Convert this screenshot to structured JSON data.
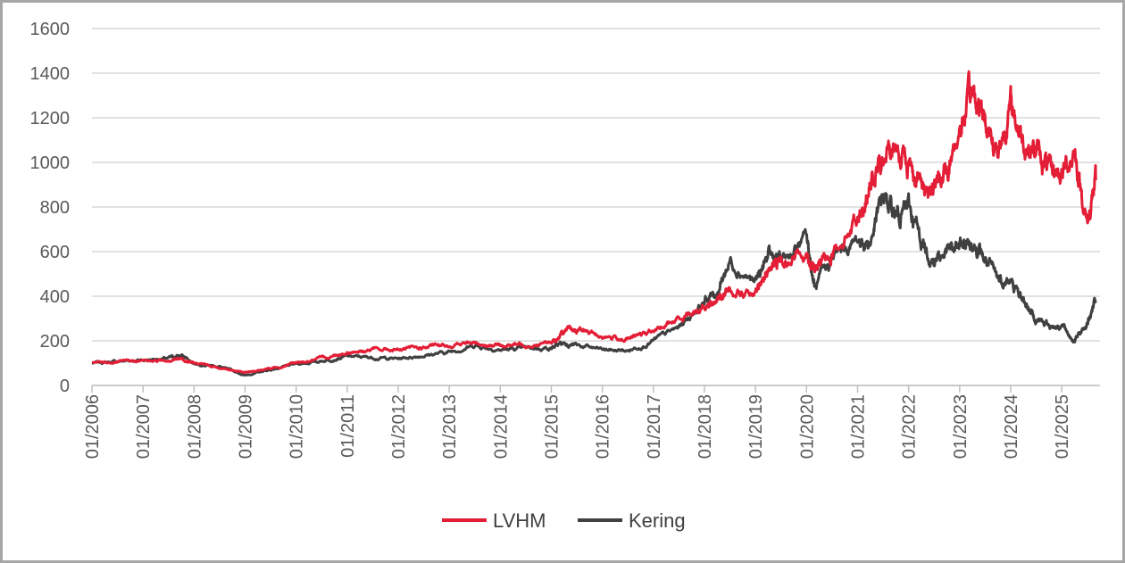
{
  "chart_data": {
    "type": "line",
    "title": "",
    "xlabel": "",
    "ylabel": "",
    "ylim": [
      0,
      1600
    ],
    "yticks": [
      0,
      200,
      400,
      600,
      800,
      1000,
      1200,
      1400,
      1600
    ],
    "x_tick_labels": [
      "01/2006",
      "01/2007",
      "01/2008",
      "01/2009",
      "01/2010",
      "01/2011",
      "01/2012",
      "01/2013",
      "01/2014",
      "01/2015",
      "01/2016",
      "01/2017",
      "01/2018",
      "01/2019",
      "01/2020",
      "01/2021",
      "01/2022",
      "01/2023",
      "01/2024",
      "01/2025"
    ],
    "grid": "horizontal",
    "legend": "bottom-center",
    "x": [
      "2006-01",
      "2006-07",
      "2007-01",
      "2007-07",
      "2007-10",
      "2008-01",
      "2008-07",
      "2009-01",
      "2009-07",
      "2010-01",
      "2010-07",
      "2011-01",
      "2011-07",
      "2012-01",
      "2012-07",
      "2013-01",
      "2013-07",
      "2014-01",
      "2014-07",
      "2015-01",
      "2015-04",
      "2015-07",
      "2016-01",
      "2016-07",
      "2017-01",
      "2017-07",
      "2018-01",
      "2018-04",
      "2018-07",
      "2019-01",
      "2019-04",
      "2019-07",
      "2020-01",
      "2020-03",
      "2020-07",
      "2021-01",
      "2021-04",
      "2021-07",
      "2021-10",
      "2022-01",
      "2022-04",
      "2022-07",
      "2022-10",
      "2023-01",
      "2023-04",
      "2023-07",
      "2023-10",
      "2024-01",
      "2024-04",
      "2024-07",
      "2024-10",
      "2025-01",
      "2025-04",
      "2025-07",
      "2025-09"
    ],
    "series": [
      {
        "name": "LVHM",
        "color": "#e31e36",
        "values": [
          100,
          105,
          110,
          115,
          120,
          100,
          80,
          58,
          75,
          100,
          120,
          150,
          160,
          160,
          170,
          180,
          190,
          180,
          185,
          190,
          240,
          250,
          220,
          210,
          240,
          300,
          360,
          380,
          440,
          400,
          520,
          560,
          600,
          520,
          600,
          760,
          900,
          1000,
          1080,
          1000,
          900,
          880,
          950,
          1150,
          1300,
          1200,
          1050,
          1250,
          1100,
          1050,
          960,
          950,
          1050,
          720,
          920
        ]
      },
      {
        "name": "Kering",
        "color": "#404040",
        "values": [
          100,
          108,
          115,
          122,
          135,
          100,
          85,
          45,
          70,
          95,
          110,
          130,
          125,
          120,
          135,
          150,
          180,
          160,
          165,
          170,
          190,
          180,
          160,
          155,
          200,
          260,
          380,
          420,
          560,
          460,
          580,
          560,
          660,
          430,
          570,
          650,
          640,
          850,
          760,
          800,
          650,
          560,
          600,
          620,
          650,
          560,
          480,
          460,
          380,
          300,
          270,
          270,
          200,
          280,
          380
        ]
      }
    ]
  }
}
